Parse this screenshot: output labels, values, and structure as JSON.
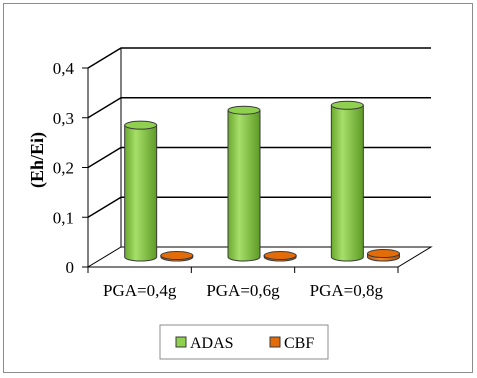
{
  "chart_data": {
    "type": "bar",
    "categories": [
      "PGA=0,4g",
      "PGA=0,6g",
      "PGA=0,8g"
    ],
    "series": [
      {
        "name": "ADAS",
        "values": [
          0.265,
          0.295,
          0.305
        ],
        "color": "#8fd14f"
      },
      {
        "name": "CBF",
        "values": [
          0.003,
          0.003,
          0.007
        ],
        "color": "#e36c09"
      }
    ],
    "title": "",
    "xlabel": "",
    "ylabel": "(Eh/Ei)",
    "ylim": [
      0,
      0.4
    ],
    "yticks": [
      "0",
      "0,1",
      "0,2",
      "0,3",
      "0,4"
    ],
    "grid": true,
    "legend": "bottom",
    "style": "3d-cylinder"
  }
}
